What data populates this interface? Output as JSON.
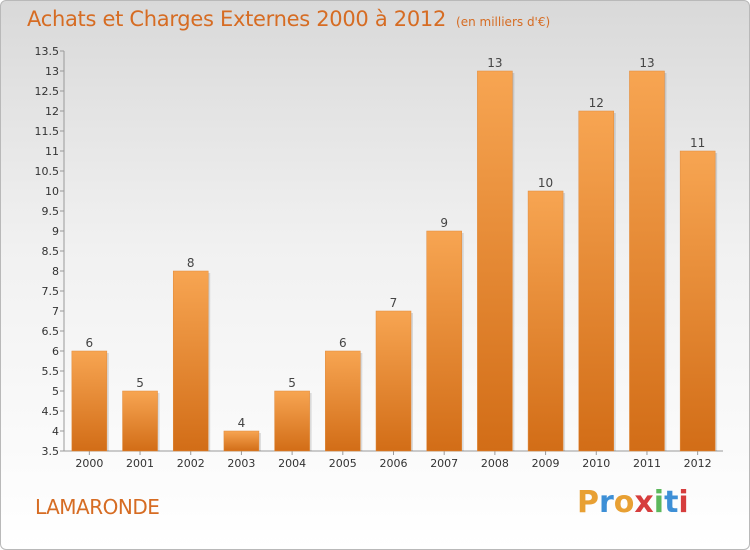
{
  "header": {
    "title": "Achats et Charges Externes 2000 à 2012",
    "subtitle": "(en milliers d'€)"
  },
  "footer": {
    "commune": "LAMARONDE",
    "logo_text": "Proxiti",
    "logo_colors": [
      "#e8a033",
      "#3d8fd6",
      "#e8a033",
      "#d63d3d",
      "#5cb85c",
      "#3d8fd6",
      "#d63d3d"
    ]
  },
  "colors": {
    "accent": "#d66c23",
    "bar_top": "#f7a552",
    "bar_bottom": "#d26d17"
  },
  "chart_data": {
    "type": "bar",
    "categories": [
      "2000",
      "2001",
      "2002",
      "2003",
      "2004",
      "2005",
      "2006",
      "2007",
      "2008",
      "2009",
      "2010",
      "2011",
      "2012"
    ],
    "values": [
      6,
      5,
      8,
      4,
      5,
      6,
      7,
      9,
      13,
      10,
      12,
      13,
      11
    ],
    "title": "Achats et Charges Externes 2000 à 2012",
    "subtitle": "(en milliers d'€)",
    "ylim": [
      3.5,
      13.5
    ],
    "yticks": [
      "3.5",
      "4",
      "4.5",
      "5",
      "5.5",
      "6",
      "6.5",
      "7",
      "7.5",
      "8",
      "8.5",
      "9",
      "9.5",
      "10",
      "10.5",
      "11",
      "11.5",
      "12",
      "12.5",
      "13",
      "13.5"
    ],
    "grid": false
  }
}
